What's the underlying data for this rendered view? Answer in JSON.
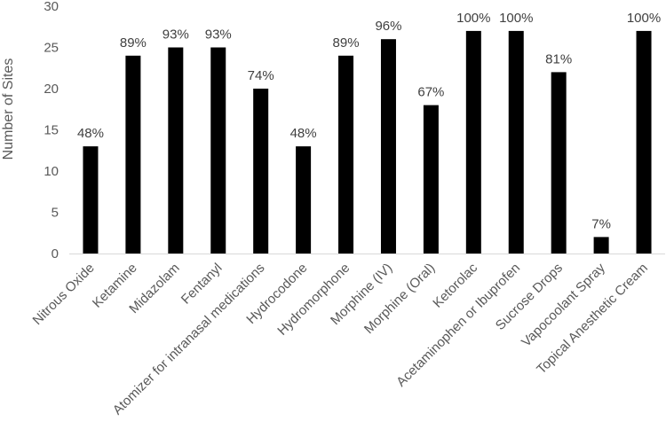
{
  "chart_data": {
    "type": "bar",
    "ylabel": "Number of Sites",
    "ylim": [
      0,
      30
    ],
    "yticks": [
      0,
      5,
      10,
      15,
      20,
      25,
      30
    ],
    "grid": false,
    "bar_color": "#000000",
    "axis_color": "#d9d9d9",
    "categories": [
      "Nitrous Oxide",
      "Ketamine",
      "Midazolam",
      "Fentanyl",
      "Atomizer for intranasal medications",
      "Hydrocodone",
      "Hydromorphone",
      "Morphine (IV)",
      "Morphine (Oral)",
      "Ketorolac",
      "Acetaminophen or Ibuprofen",
      "Sucrose Drops",
      "Vapocoolant Spray",
      "Topical Anesthetic Cream"
    ],
    "values": [
      13,
      24,
      25,
      25,
      20,
      13,
      24,
      26,
      18,
      27,
      27,
      22,
      2,
      27
    ],
    "data_labels": [
      "48%",
      "89%",
      "93%",
      "93%",
      "74%",
      "48%",
      "89%",
      "96%",
      "67%",
      "100%",
      "100%",
      "81%",
      "7%",
      "100%"
    ]
  }
}
